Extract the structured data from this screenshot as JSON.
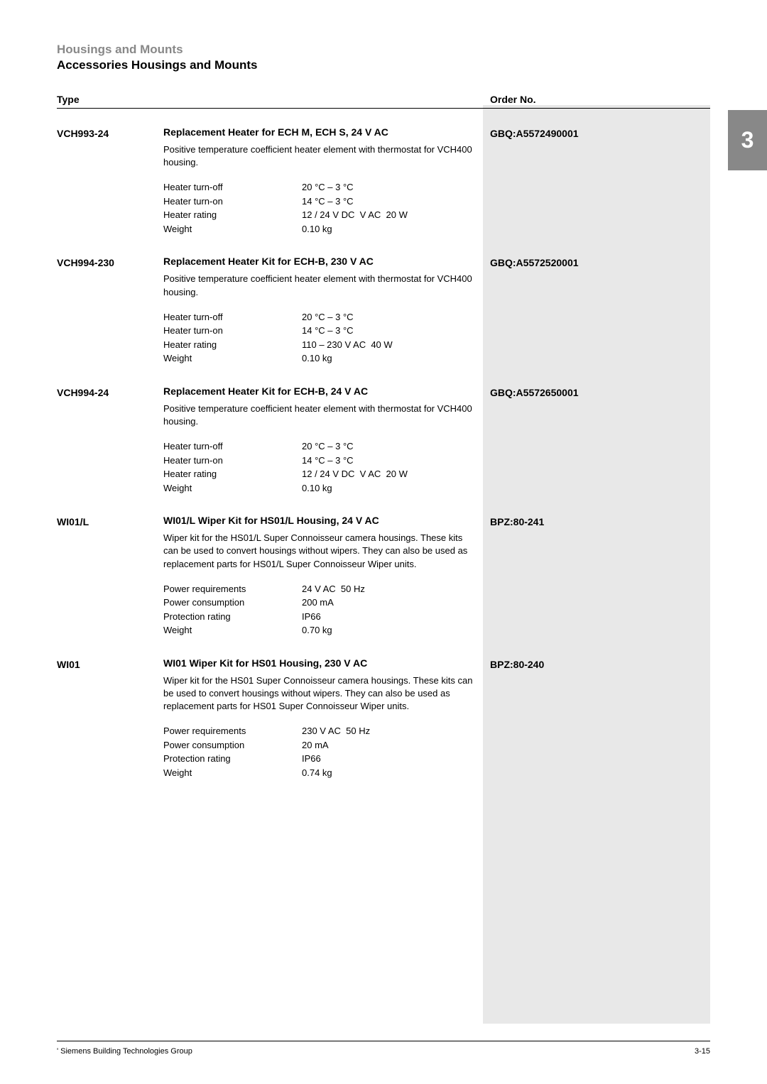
{
  "header": {
    "subtitle": "Housings and Mounts",
    "title": "Accessories Housings and Mounts"
  },
  "columns": {
    "type": "Type",
    "order": "Order No."
  },
  "tab_number": "3",
  "products": [
    {
      "type": "VCH993-24",
      "order": "GBQ:A5572490001",
      "title": "Replacement Heater for ECH M, ECH S, 24 V AC",
      "description": "Positive temperature coefficient heater element with thermostat for VCH400 housing.",
      "specs": [
        {
          "label": "Heater turn-off",
          "value": "20 °C – 3 °C"
        },
        {
          "label": "Heater turn-on",
          "value": "14 °C – 3 °C"
        },
        {
          "label": "Heater rating",
          "value": "12 / 24 V DC  V AC  20 W"
        },
        {
          "label": "Weight",
          "value": "0.10 kg"
        }
      ]
    },
    {
      "type": "VCH994-230",
      "order": "GBQ:A5572520001",
      "title": "Replacement Heater Kit for ECH-B, 230 V AC",
      "description": "Positive temperature coefficient heater element with thermostat for VCH400 housing.",
      "specs": [
        {
          "label": "Heater turn-off",
          "value": "20 °C – 3 °C"
        },
        {
          "label": "Heater turn-on",
          "value": "14 °C – 3 °C"
        },
        {
          "label": "Heater rating",
          "value": "110 – 230 V AC  40 W"
        },
        {
          "label": "Weight",
          "value": "0.10 kg"
        }
      ]
    },
    {
      "type": "VCH994-24",
      "order": "GBQ:A5572650001",
      "title": "Replacement Heater Kit for ECH-B, 24 V AC",
      "description": "Positive temperature coefficient heater element with thermostat for VCH400 housing.",
      "specs": [
        {
          "label": "Heater turn-off",
          "value": "20 °C – 3 °C"
        },
        {
          "label": "Heater turn-on",
          "value": "14 °C – 3 °C"
        },
        {
          "label": "Heater rating",
          "value": "12 / 24 V DC  V AC  20 W"
        },
        {
          "label": "Weight",
          "value": "0.10 kg"
        }
      ]
    },
    {
      "type": "WI01/L",
      "order": "BPZ:80-241",
      "title": "WI01/L Wiper Kit for HS01/L Housing, 24 V AC",
      "description": "Wiper kit for the HS01/L Super Connoisseur camera housings. These kits can be used to convert housings without wipers. They can also be used as replacement parts for HS01/L Super Connoisseur Wiper units.",
      "specs": [
        {
          "label": "Power requirements",
          "value": "24 V AC  50 Hz"
        },
        {
          "label": "Power consumption",
          "value": "200 mA"
        },
        {
          "label": "Protection rating",
          "value": "IP66"
        },
        {
          "label": "Weight",
          "value": "0.70 kg"
        }
      ]
    },
    {
      "type": "WI01",
      "order": "BPZ:80-240",
      "title": "WI01 Wiper Kit for HS01 Housing, 230 V AC",
      "description": "Wiper kit for the HS01 Super Connoisseur camera housings. These kits can be used to convert housings without wipers. They can also be used as replacement parts for HS01 Super Connoisseur Wiper units.",
      "specs": [
        {
          "label": "Power requirements",
          "value": "230 V AC  50 Hz"
        },
        {
          "label": "Power consumption",
          "value": "20 mA"
        },
        {
          "label": "Protection rating",
          "value": "IP66"
        },
        {
          "label": "Weight",
          "value": "0.74 kg"
        }
      ]
    }
  ],
  "footer": {
    "left": "' Siemens Building Technologies Group",
    "right": "3-15"
  },
  "styling": {
    "page_bg": "#ffffff",
    "text_color": "#000000",
    "subtitle_color": "#888888",
    "order_strip_bg": "#e8e8e8",
    "tab_bg": "#888888",
    "tab_text": "#ffffff",
    "body_fontsize": 13,
    "bold_fontsize": 14,
    "header_fontsize": 17,
    "tab_fontsize": 32,
    "footer_fontsize": 11
  }
}
